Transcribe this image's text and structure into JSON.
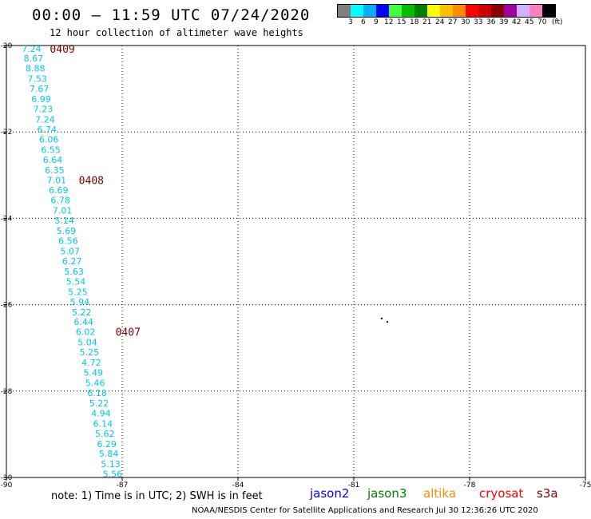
{
  "title": "00:00 – 11:59 UTC 07/24/2020",
  "subtitle": "12 hour collection of altimeter wave heights",
  "color_scale": {
    "colors": [
      "#808080",
      "#00ffff",
      "#00b0ff",
      "#0000ff",
      "#40ff40",
      "#00c000",
      "#008000",
      "#ffff00",
      "#ffc000",
      "#ff8c00",
      "#ff0000",
      "#d00000",
      "#880000",
      "#a000a0",
      "#d0b0ff",
      "#ff80c0",
      "#000000"
    ],
    "labels": [
      "3",
      "6",
      "9",
      "12",
      "15",
      "18",
      "21",
      "24",
      "27",
      "30",
      "33",
      "36",
      "39",
      "42",
      "45",
      "70",
      "(ft)"
    ]
  },
  "note": "note: 1) Time is in UTC; 2) SWH is in feet",
  "missions": [
    {
      "name": "jason2",
      "color": "#0000ff"
    },
    {
      "name": "jason3",
      "color": "#008000"
    },
    {
      "name": "altika",
      "color": "#ff8c00"
    },
    {
      "name": "cryosat",
      "color": "#ff0000"
    },
    {
      "name": "s3a",
      "color": "#880000"
    }
  ],
  "credit": "NOAA/NESDIS Center for Satellite Applications and Research   Jul 30 12:36:26 UTC 2020",
  "chart_data": {
    "type": "scatter",
    "title": "00:00 – 11:59 UTC 07/24/2020",
    "subtitle": "12 hour collection of altimeter wave heights",
    "xlabel": "",
    "ylabel": "",
    "xlim": [
      -90,
      -75
    ],
    "ylim": [
      -30,
      -20
    ],
    "grid": true,
    "x_ticks": [
      "-90",
      "-87",
      "-84",
      "-81",
      "-78",
      "-75"
    ],
    "y_ticks": [
      "-20",
      "-22",
      "-24",
      "-26",
      "-28",
      "-30"
    ],
    "series": [
      {
        "color": "#00c8f0",
        "points": [
          {
            "x": -89.35,
            "y": -20.07,
            "v": "7.24"
          },
          {
            "x": -89.3,
            "y": -20.3,
            "v": "8.67"
          },
          {
            "x": -89.25,
            "y": -20.53,
            "v": "8.88"
          },
          {
            "x": -89.2,
            "y": -20.77,
            "v": "7.53"
          },
          {
            "x": -89.15,
            "y": -21.0,
            "v": "7.67"
          },
          {
            "x": -89.1,
            "y": -21.24,
            "v": "6.99"
          },
          {
            "x": -89.05,
            "y": -21.47,
            "v": "7.23"
          },
          {
            "x": -89.0,
            "y": -21.71,
            "v": "7.24"
          },
          {
            "x": -88.95,
            "y": -21.94,
            "v": "6.74"
          },
          {
            "x": -88.9,
            "y": -22.17,
            "v": "6.06"
          },
          {
            "x": -88.85,
            "y": -22.41,
            "v": "6.55"
          },
          {
            "x": -88.8,
            "y": -22.64,
            "v": "6.64"
          },
          {
            "x": -88.75,
            "y": -22.88,
            "v": "6.35"
          },
          {
            "x": -88.7,
            "y": -23.11,
            "v": "7.01"
          },
          {
            "x": -88.65,
            "y": -23.35,
            "v": "6.69"
          },
          {
            "x": -88.6,
            "y": -23.58,
            "v": "6.78"
          },
          {
            "x": -88.55,
            "y": -23.82,
            "v": "7.01"
          },
          {
            "x": -88.5,
            "y": -24.05,
            "v": "5.14"
          },
          {
            "x": -88.45,
            "y": -24.29,
            "v": "5.69"
          },
          {
            "x": -88.4,
            "y": -24.52,
            "v": "6.56"
          },
          {
            "x": -88.35,
            "y": -24.76,
            "v": "5.07"
          },
          {
            "x": -88.3,
            "y": -24.99,
            "v": "6.27"
          },
          {
            "x": -88.25,
            "y": -25.23,
            "v": "5.63"
          },
          {
            "x": -88.2,
            "y": -25.46,
            "v": "5.54"
          },
          {
            "x": -88.15,
            "y": -25.7,
            "v": "5.25"
          },
          {
            "x": -88.1,
            "y": -25.93,
            "v": "5.94"
          },
          {
            "x": -88.05,
            "y": -26.17,
            "v": "5.22"
          },
          {
            "x": -88.0,
            "y": -26.4,
            "v": "6.44"
          },
          {
            "x": -87.95,
            "y": -26.63,
            "v": "6.02"
          },
          {
            "x": -87.9,
            "y": -26.87,
            "v": "5.04"
          },
          {
            "x": -87.85,
            "y": -27.1,
            "v": "5.25"
          },
          {
            "x": -87.8,
            "y": -27.34,
            "v": "4.72"
          },
          {
            "x": -87.75,
            "y": -27.57,
            "v": "5.49"
          },
          {
            "x": -87.7,
            "y": -27.81,
            "v": "5.46"
          },
          {
            "x": -87.65,
            "y": -28.04,
            "v": "6.18"
          },
          {
            "x": -87.6,
            "y": -28.28,
            "v": "5.22"
          },
          {
            "x": -87.55,
            "y": -28.51,
            "v": "4.94"
          },
          {
            "x": -87.5,
            "y": -28.75,
            "v": "6.14"
          },
          {
            "x": -87.45,
            "y": -28.98,
            "v": "5.62"
          },
          {
            "x": -87.4,
            "y": -29.22,
            "v": "6.29"
          },
          {
            "x": -87.35,
            "y": -29.45,
            "v": "5.84"
          },
          {
            "x": -87.3,
            "y": -29.69,
            "v": "5.13"
          },
          {
            "x": -87.25,
            "y": -29.92,
            "v": "5.56"
          }
        ]
      }
    ],
    "annotations": [
      {
        "text": "0409",
        "x": -88.55,
        "y": -20.07,
        "color": "#7a0000"
      },
      {
        "text": "0408",
        "x": -87.8,
        "y": -23.11,
        "color": "#7a0000"
      },
      {
        "text": "0407",
        "x": -86.85,
        "y": -26.63,
        "color": "#7a0000"
      }
    ],
    "markers": [
      {
        "x": -80.3,
        "y": -26.3
      },
      {
        "x": -80.15,
        "y": -26.38
      }
    ]
  }
}
